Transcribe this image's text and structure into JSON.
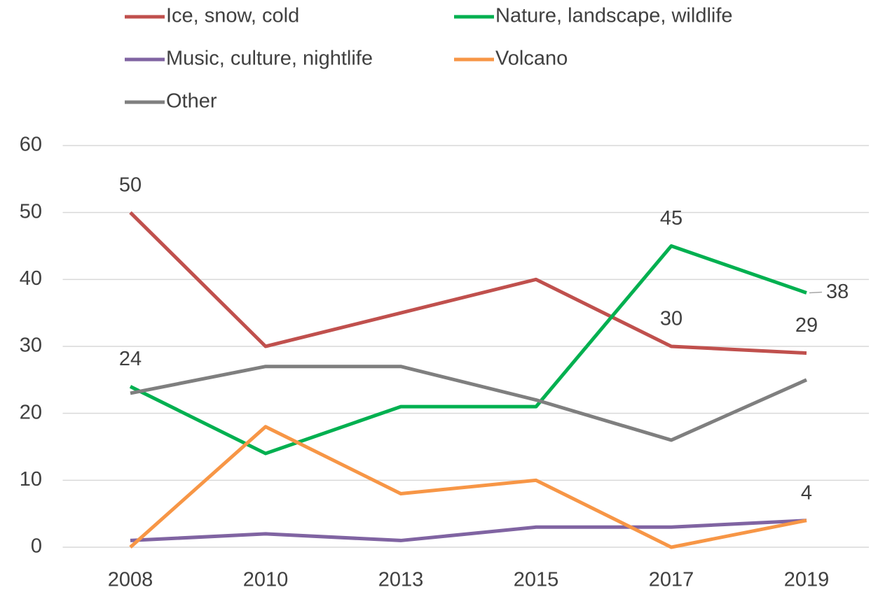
{
  "chart_data": {
    "type": "line",
    "categories": [
      "2008",
      "2010",
      "2013",
      "2015",
      "2017",
      "2019"
    ],
    "series": [
      {
        "name": "Ice, snow, cold",
        "color": "#c0504d",
        "values": [
          50,
          30,
          35,
          40,
          30,
          29
        ],
        "labels_at": [
          0,
          4,
          5
        ]
      },
      {
        "name": "Nature, landscape, wildlife",
        "color": "#00b050",
        "values": [
          24,
          14,
          21,
          21,
          45,
          38
        ],
        "labels_at": [
          0,
          4,
          5
        ]
      },
      {
        "name": "Music, culture, nightlife",
        "color": "#8064a2",
        "values": [
          1,
          2,
          1,
          3,
          3,
          4
        ],
        "labels_at": [
          5
        ]
      },
      {
        "name": "Volcano",
        "color": "#f79646",
        "values": [
          0,
          18,
          8,
          10,
          0,
          4
        ],
        "labels_at": []
      },
      {
        "name": "Other",
        "color": "#7f7f7f",
        "values": [
          23,
          27,
          27,
          22,
          16,
          25
        ],
        "labels_at": []
      }
    ],
    "ylim": [
      0,
      60
    ],
    "yticks": [
      0,
      10,
      20,
      30,
      40,
      50,
      60
    ],
    "grid": true,
    "legend": "top"
  }
}
